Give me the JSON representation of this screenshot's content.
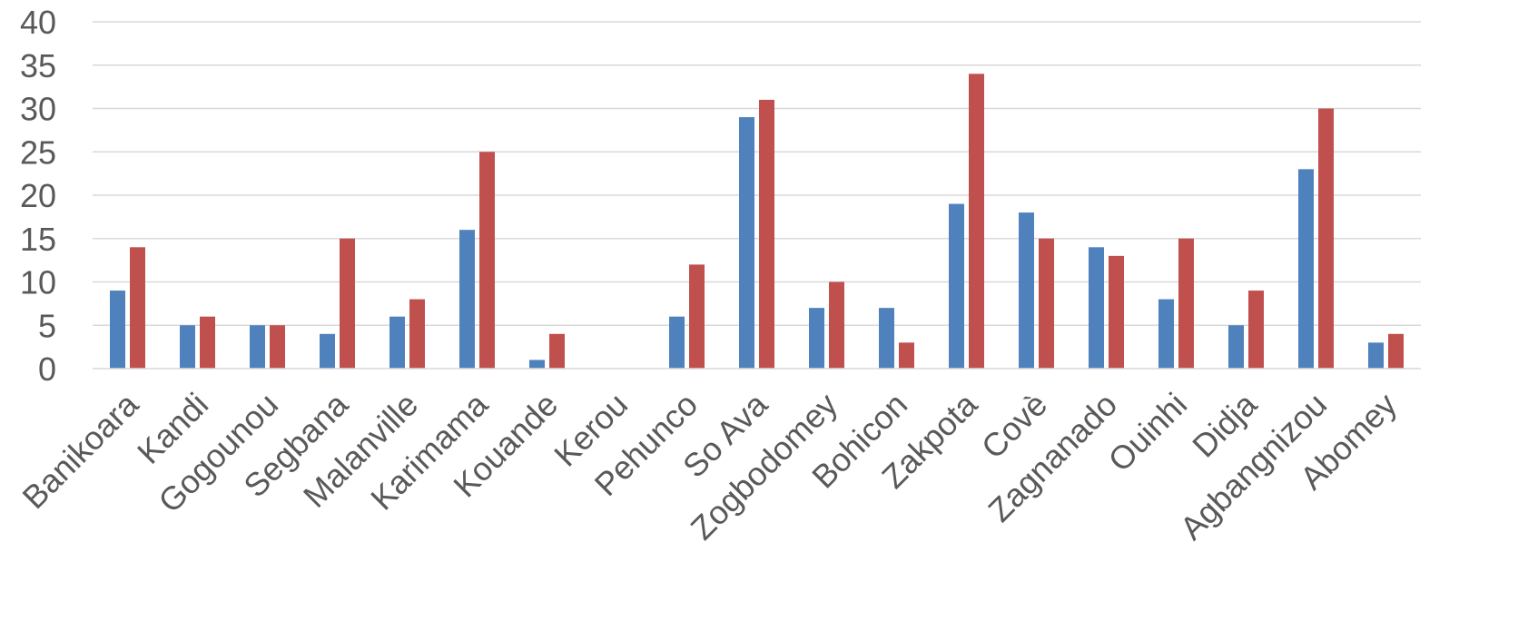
{
  "chart_data": {
    "type": "bar",
    "title": "",
    "xlabel": "",
    "ylabel": "",
    "ylim": [
      0,
      40
    ],
    "yticks": [
      0,
      5,
      10,
      15,
      20,
      25,
      30,
      35,
      40
    ],
    "grid": true,
    "legend": "none",
    "categories": [
      "Banikoara",
      "Kandi",
      "Gogounou",
      "Segbana",
      "Malanville",
      "Karimama",
      "Kouande",
      "Kerou",
      "Pehunco",
      "So Ava",
      "Zogbodomey",
      "Bohicon",
      "Zakpota",
      "Covè",
      "Zagnanado",
      "Ouinhi",
      "Didja",
      "Agbangnizou",
      "Abomey"
    ],
    "series": [
      {
        "color": "#4f81bd",
        "values": [
          9,
          5,
          5,
          4,
          6,
          16,
          1,
          0,
          6,
          29,
          7,
          7,
          19,
          18,
          14,
          8,
          5,
          23,
          3
        ]
      },
      {
        "color": "#c0504d",
        "values": [
          14,
          6,
          5,
          15,
          8,
          25,
          4,
          0,
          12,
          31,
          10,
          3,
          34,
          15,
          13,
          15,
          9,
          30,
          4
        ]
      }
    ]
  }
}
